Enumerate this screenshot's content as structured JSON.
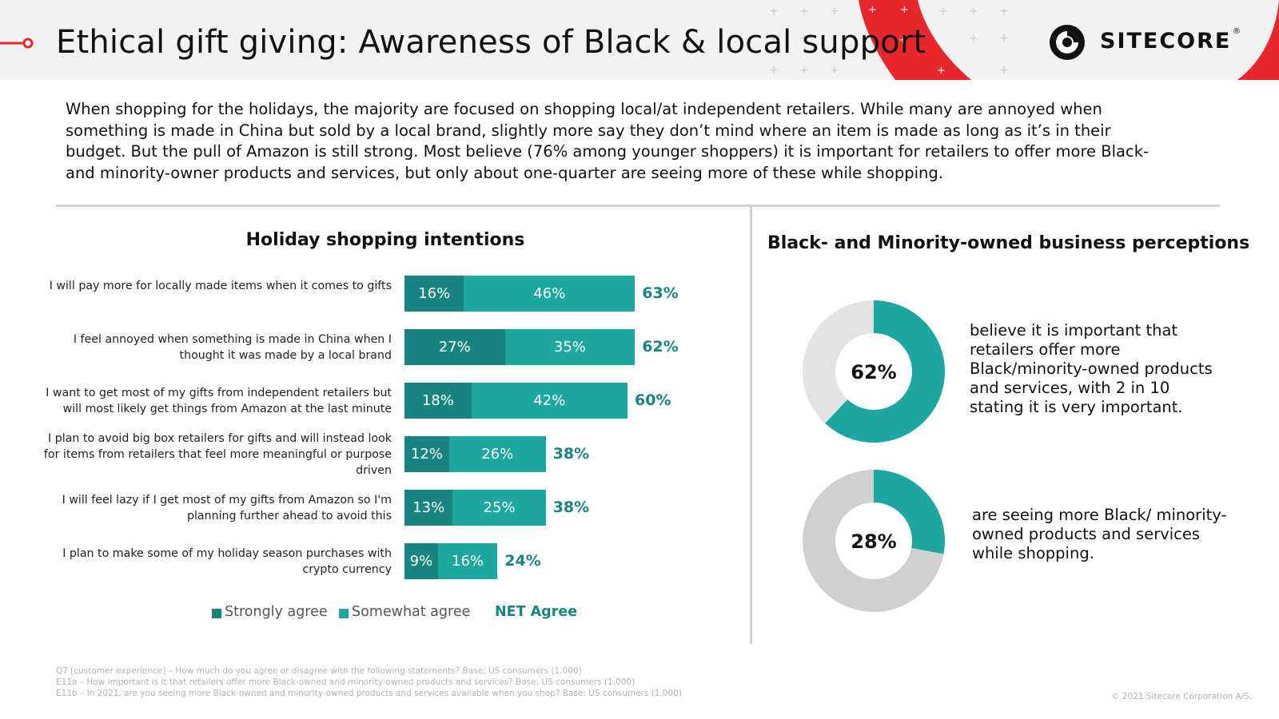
{
  "header": {
    "title": "Ethical gift giving: Awareness of Black & local support",
    "brand": "SITECORE",
    "brand_mark": "®",
    "accent_color": "#e8272c"
  },
  "intro": "When shopping for the holidays, the majority are focused on shopping local/at independent retailers. While many are annoyed when something is made in China but sold by a local brand, slightly more say they don’t mind where an item is made as long as it’s in their budget. But the pull of Amazon is still strong. Most believe (76% among younger shoppers) it is important for retailers to offer more Black- and minority-owner products and services, but only about one-quarter are seeing more of these while shopping.",
  "legend": {
    "strong": "Strongly agree",
    "some": "Somewhat agree",
    "net": "NET Agree"
  },
  "right_panel": {
    "title": "Black- and  Minority-owned business perceptions",
    "donuts": [
      {
        "value_label": "62%",
        "description": "believe it is important that retailers offer more Black/minority-owned products and services, with 2 in 10 stating it is very important."
      },
      {
        "value_label": "28%",
        "description": "are seeing more Black/ minority-owned products and services while shopping."
      }
    ]
  },
  "notes": [
    "Q7 [customer experience] – How much do you agree or disagree with the following statements? Base: US consumers (1,000)",
    "E11a – How important is it that retailers offer more Black-owned and minority-owned products and services? Base: US consumers (1,000)",
    "E11b – In 2021, are you seeing more Black-owned and minority-owned products and services available when you shop? Base: US consumers (1,000)"
  ],
  "copyright": "© 2021 Sitecore Corporation A/S.",
  "chart_data": [
    {
      "type": "bar",
      "orientation": "horizontal",
      "stacked": true,
      "title": "Holiday shopping intentions",
      "categories": [
        "I will pay more for locally made items when it comes to gifts",
        "I feel annoyed when something is made in China when I thought it was made by a local brand",
        "I want to get most of my gifts from independent retailers but will most likely get things from Amazon at the last minute",
        "I plan to avoid big box retailers for gifts and will instead look for items from retailers that feel more meaningful or purpose driven",
        "I will feel lazy if I get most of my gifts from Amazon so I'm planning further ahead to avoid this",
        "I plan to make some of my holiday season purchases with crypto currency"
      ],
      "series": [
        {
          "name": "Strongly agree",
          "color": "#19847f",
          "values": [
            16,
            27,
            18,
            12,
            13,
            9
          ],
          "labels": [
            "16%",
            "27%",
            "18%",
            "12%",
            "13%",
            "9%"
          ]
        },
        {
          "name": "Somewhat agree",
          "color": "#1ea6a1",
          "values": [
            46,
            35,
            42,
            26,
            25,
            16
          ],
          "labels": [
            "46%",
            "35%",
            "42%",
            "26%",
            "25%",
            "16%"
          ]
        }
      ],
      "net": {
        "name": "NET Agree",
        "values": [
          63,
          62,
          60,
          38,
          38,
          24
        ],
        "labels": [
          "63%",
          "62%",
          "60%",
          "38%",
          "38%",
          "24%"
        ]
      },
      "legend_position": "bottom"
    },
    {
      "type": "pie",
      "donut": true,
      "values": [
        62,
        38
      ],
      "colors": [
        "#1ea6a1",
        "#e3e3e3"
      ],
      "center_label": "62%"
    },
    {
      "type": "pie",
      "donut": true,
      "values": [
        28,
        72
      ],
      "colors": [
        "#1ea6a1",
        "#d0d0d0"
      ],
      "center_label": "28%"
    }
  ]
}
